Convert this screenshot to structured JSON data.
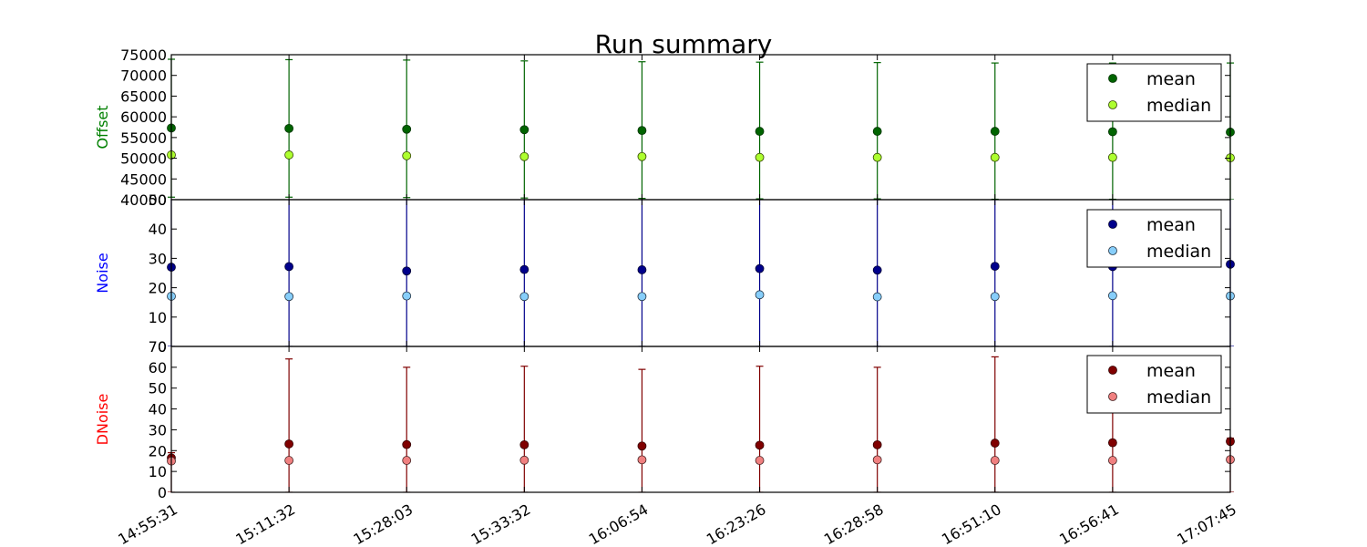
{
  "chart_data": {
    "type": "scatter",
    "title": "Run summary",
    "x_tick_labels": [
      "14:55:31",
      "15:11:32",
      "15:28:03",
      "15:33:32",
      "16:06:54",
      "16:23:26",
      "16:28:58",
      "16:51:10",
      "16:56:41",
      "17:07:45"
    ],
    "legend_position": "top-right",
    "panels": [
      {
        "ylabel": "Offset",
        "ylabel_color": "#008000",
        "ylim": [
          40000,
          75000
        ],
        "yticks": [
          40000,
          45000,
          50000,
          55000,
          60000,
          65000,
          70000,
          75000
        ],
        "series": [
          {
            "name": "mean",
            "color": "#006400",
            "edge": "#003300",
            "values": [
              57300,
              57200,
              57000,
              56900,
              56700,
              56500,
              56500,
              56500,
              56400,
              56300
            ],
            "error_upper": [
              73900,
              73800,
              73700,
              73500,
              73300,
              73200,
              73100,
              73000,
              73000,
              73000
            ],
            "error_lower": [
              40600,
              40600,
              40500,
              40400,
              40300,
              40200,
              40200,
              40100,
              40100,
              40000
            ]
          },
          {
            "name": "median",
            "color": "#adff2f",
            "edge": "#334400",
            "values": [
              50800,
              50800,
              50600,
              50400,
              50400,
              50200,
              50200,
              50200,
              50200,
              50100
            ]
          }
        ]
      },
      {
        "ylabel": "Noise",
        "ylabel_color": "#0000ff",
        "ylim": [
          0,
          50
        ],
        "yticks": [
          0,
          10,
          20,
          30,
          40,
          50
        ],
        "series": [
          {
            "name": "mean",
            "color": "#00008b",
            "edge": "#000033",
            "values": [
              27,
              27.2,
              25.7,
              26.2,
              26.1,
              26.5,
              26,
              27.3,
              27.2,
              28
            ],
            "error_upper": [
              52,
              52,
              52,
              52,
              52,
              52,
              52,
              52,
              52,
              52
            ],
            "error_lower": [
              0,
              0,
              0,
              0,
              0,
              0,
              0,
              0,
              0,
              0
            ]
          },
          {
            "name": "median",
            "color": "#87cefa",
            "edge": "#223344",
            "values": [
              17.1,
              17,
              17.2,
              17,
              17,
              17.6,
              16.9,
              17,
              17.3,
              17.2
            ]
          }
        ]
      },
      {
        "ylabel": "DNoise",
        "ylabel_color": "#ff0000",
        "ylim": [
          0,
          70
        ],
        "yticks": [
          0,
          10,
          20,
          30,
          40,
          50,
          60,
          70
        ],
        "series": [
          {
            "name": "mean",
            "color": "#800000",
            "edge": "#330000",
            "values": [
              16.5,
              23.2,
              22.9,
              22.8,
              22.2,
              22.6,
              22.8,
              23.6,
              23.8,
              24.4
            ],
            "error_upper": [
              19,
              64,
              60,
              60.5,
              59,
              60.5,
              60,
              65,
              62,
              26
            ],
            "error_lower": [
              0,
              0,
              0,
              0,
              0,
              0,
              0,
              0,
              0,
              0
            ]
          },
          {
            "name": "median",
            "color": "#f08080",
            "edge": "#442222",
            "values": [
              15,
              15.3,
              15.3,
              15.4,
              15.6,
              15.3,
              15.6,
              15.3,
              15.3,
              15.7
            ]
          }
        ]
      }
    ]
  }
}
